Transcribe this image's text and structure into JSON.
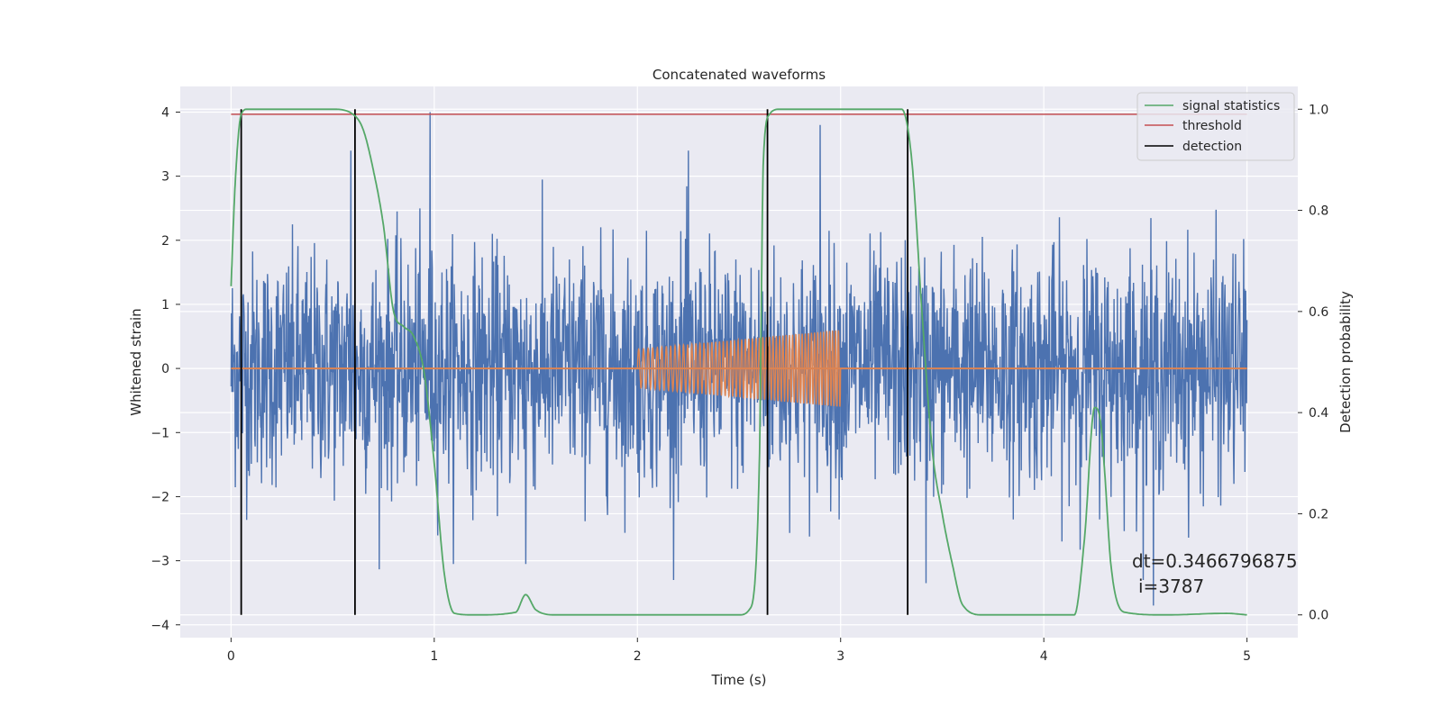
{
  "chart_data": {
    "type": "line",
    "title": "Concatenated waveforms",
    "xlabel": "Time (s)",
    "ylabel_left": "Whitened strain",
    "ylabel_right": "Detection probability",
    "xlim": [
      -0.25,
      5.25
    ],
    "ylim_left": [
      -4.2,
      4.4
    ],
    "ylim_right": [
      -0.045,
      1.045
    ],
    "x_ticks": [
      0,
      1,
      2,
      3,
      4,
      5
    ],
    "x_tick_labels": [
      "0",
      "1",
      "2",
      "3",
      "4",
      "5"
    ],
    "y_left_ticks": [
      4,
      3,
      2,
      1,
      0,
      -1,
      -2,
      -3,
      -4
    ],
    "y_left_tick_labels": [
      "4",
      "3",
      "2",
      "1",
      "0",
      "−1",
      "−2",
      "−3",
      "−4"
    ],
    "y_right_ticks": [
      1.0,
      0.8,
      0.6,
      0.4,
      0.2,
      0.0
    ],
    "y_right_tick_labels": [
      "1.0",
      "0.8",
      "0.6",
      "0.4",
      "0.2",
      "0.0"
    ],
    "grid": true,
    "legend_position": "top-right",
    "colors": {
      "strain": "#4c72b0",
      "template": "#dd8452",
      "signal_statistics": "#55a868",
      "threshold": "#c44e52",
      "detection": "#000000",
      "axes_bg": "#eaeaf2",
      "grid": "#ffffff"
    },
    "series": [
      {
        "name": "signal statistics",
        "axis": "right",
        "x": [
          0.0,
          0.02,
          0.05,
          0.08,
          0.2,
          0.5,
          0.6,
          0.65,
          0.7,
          0.75,
          0.8,
          0.85,
          0.9,
          0.95,
          1.0,
          1.05,
          1.1,
          1.2,
          1.4,
          1.45,
          1.5,
          1.6,
          2.0,
          2.5,
          2.55,
          2.6,
          2.62,
          2.65,
          2.7,
          3.0,
          3.3,
          3.35,
          3.4,
          3.45,
          3.5,
          3.55,
          3.6,
          3.7,
          4.15,
          4.2,
          4.25,
          4.28,
          4.3,
          4.33,
          4.4,
          4.6,
          4.9,
          5.0
        ],
        "y": [
          0.65,
          0.85,
          0.99,
          1.0,
          1.0,
          1.0,
          0.99,
          0.96,
          0.88,
          0.77,
          0.6,
          0.57,
          0.55,
          0.48,
          0.3,
          0.08,
          0.003,
          0.0,
          0.005,
          0.04,
          0.01,
          0.0,
          0.0,
          0.0,
          0.01,
          0.3,
          0.9,
          0.99,
          1.0,
          1.0,
          1.0,
          0.9,
          0.6,
          0.33,
          0.2,
          0.1,
          0.02,
          0.0,
          0.0,
          0.15,
          0.41,
          0.38,
          0.28,
          0.1,
          0.005,
          0.0,
          0.003,
          0.0
        ]
      },
      {
        "name": "threshold",
        "axis": "right",
        "x": [
          0.0,
          5.0
        ],
        "y": [
          0.99,
          0.99
        ]
      },
      {
        "name": "detection",
        "axis": "right",
        "type": "vlines",
        "x": [
          0.05,
          0.61,
          2.64,
          3.33
        ],
        "y_range": [
          0.0,
          1.0
        ]
      }
    ],
    "strain": {
      "axis": "left",
      "x_range": [
        0.0,
        5.0
      ],
      "typical_amplitude": 0.9,
      "max_spikes": [
        {
          "x": 0.98,
          "y": 4.0
        },
        {
          "x": 0.59,
          "y": 3.4
        },
        {
          "x": 2.9,
          "y": 3.8
        },
        {
          "x": 2.25,
          "y": 3.4
        },
        {
          "x": 1.45,
          "y": -3.05
        },
        {
          "x": 4.54,
          "y": -3.7
        },
        {
          "x": 3.42,
          "y": -3.35
        }
      ]
    },
    "template": {
      "axis": "left",
      "flat_x": [
        0.0,
        5.0
      ],
      "flat_y": 0.0,
      "chirp_x_range": [
        2.0,
        3.0
      ],
      "chirp_amplitude": [
        0.3,
        0.6
      ]
    },
    "annotation_lines": [
      "dt=0.3466796875",
      "i=3787"
    ]
  }
}
